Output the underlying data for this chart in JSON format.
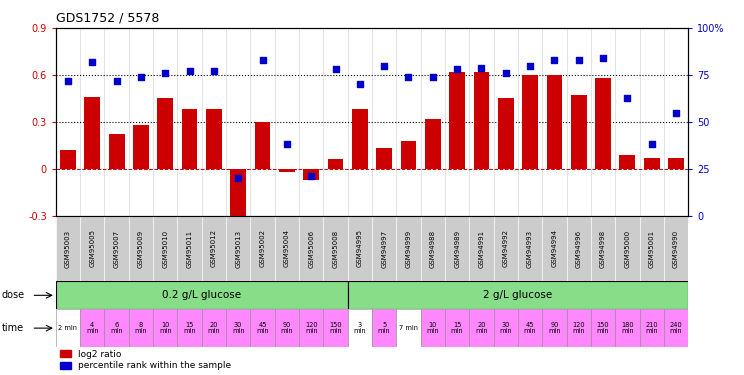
{
  "title": "GDS1752 / 5578",
  "samples": [
    "GSM95003",
    "GSM95005",
    "GSM95007",
    "GSM95009",
    "GSM95010",
    "GSM95011",
    "GSM95012",
    "GSM95013",
    "GSM95002",
    "GSM95004",
    "GSM95006",
    "GSM95008",
    "GSM94995",
    "GSM94997",
    "GSM94999",
    "GSM94988",
    "GSM94989",
    "GSM94991",
    "GSM94992",
    "GSM94993",
    "GSM94994",
    "GSM94996",
    "GSM94998",
    "GSM95000",
    "GSM95001",
    "GSM94990"
  ],
  "log2_ratio": [
    0.12,
    0.46,
    0.22,
    0.28,
    0.45,
    0.38,
    0.38,
    -0.38,
    0.3,
    -0.02,
    -0.07,
    0.06,
    0.38,
    0.13,
    0.18,
    0.32,
    0.62,
    0.62,
    0.45,
    0.6,
    0.6,
    0.47,
    0.58,
    0.09,
    0.07,
    0.07
  ],
  "percentile": [
    72,
    82,
    72,
    74,
    76,
    77,
    77,
    20,
    83,
    38,
    21,
    78,
    70,
    80,
    74,
    74,
    78,
    79,
    76,
    80,
    83,
    83,
    84,
    63,
    38,
    55
  ],
  "dose_labels": [
    "0.2 g/L glucose",
    "2 g/L glucose"
  ],
  "dose_split": 12,
  "time_labels": [
    "2 min",
    "4\nmin",
    "6\nmin",
    "8\nmin",
    "10\nmin",
    "15\nmin",
    "20\nmin",
    "30\nmin",
    "45\nmin",
    "90\nmin",
    "120\nmin",
    "150\nmin",
    "3\nmin",
    "5\nmin",
    "7 min",
    "10\nmin",
    "15\nmin",
    "20\nmin",
    "30\nmin",
    "45\nmin",
    "90\nmin",
    "120\nmin",
    "150\nmin",
    "180\nmin",
    "210\nmin",
    "240\nmin"
  ],
  "bar_color": "#cc0000",
  "scatter_color": "#0000cc",
  "ylim_left": [
    -0.3,
    0.9
  ],
  "ylim_right": [
    0,
    100
  ],
  "yticks_left": [
    -0.3,
    0.0,
    0.3,
    0.6,
    0.9
  ],
  "yticks_right": [
    0,
    25,
    50,
    75,
    100
  ],
  "hline_values": [
    0.3,
    0.6
  ],
  "dose_green": "#88dd88",
  "time_pink": "#ff88ff",
  "time_white_indices": [
    0,
    12,
    14
  ],
  "label_gray": "#cccccc",
  "grid_color": "#cccccc",
  "background_color": "#ffffff"
}
